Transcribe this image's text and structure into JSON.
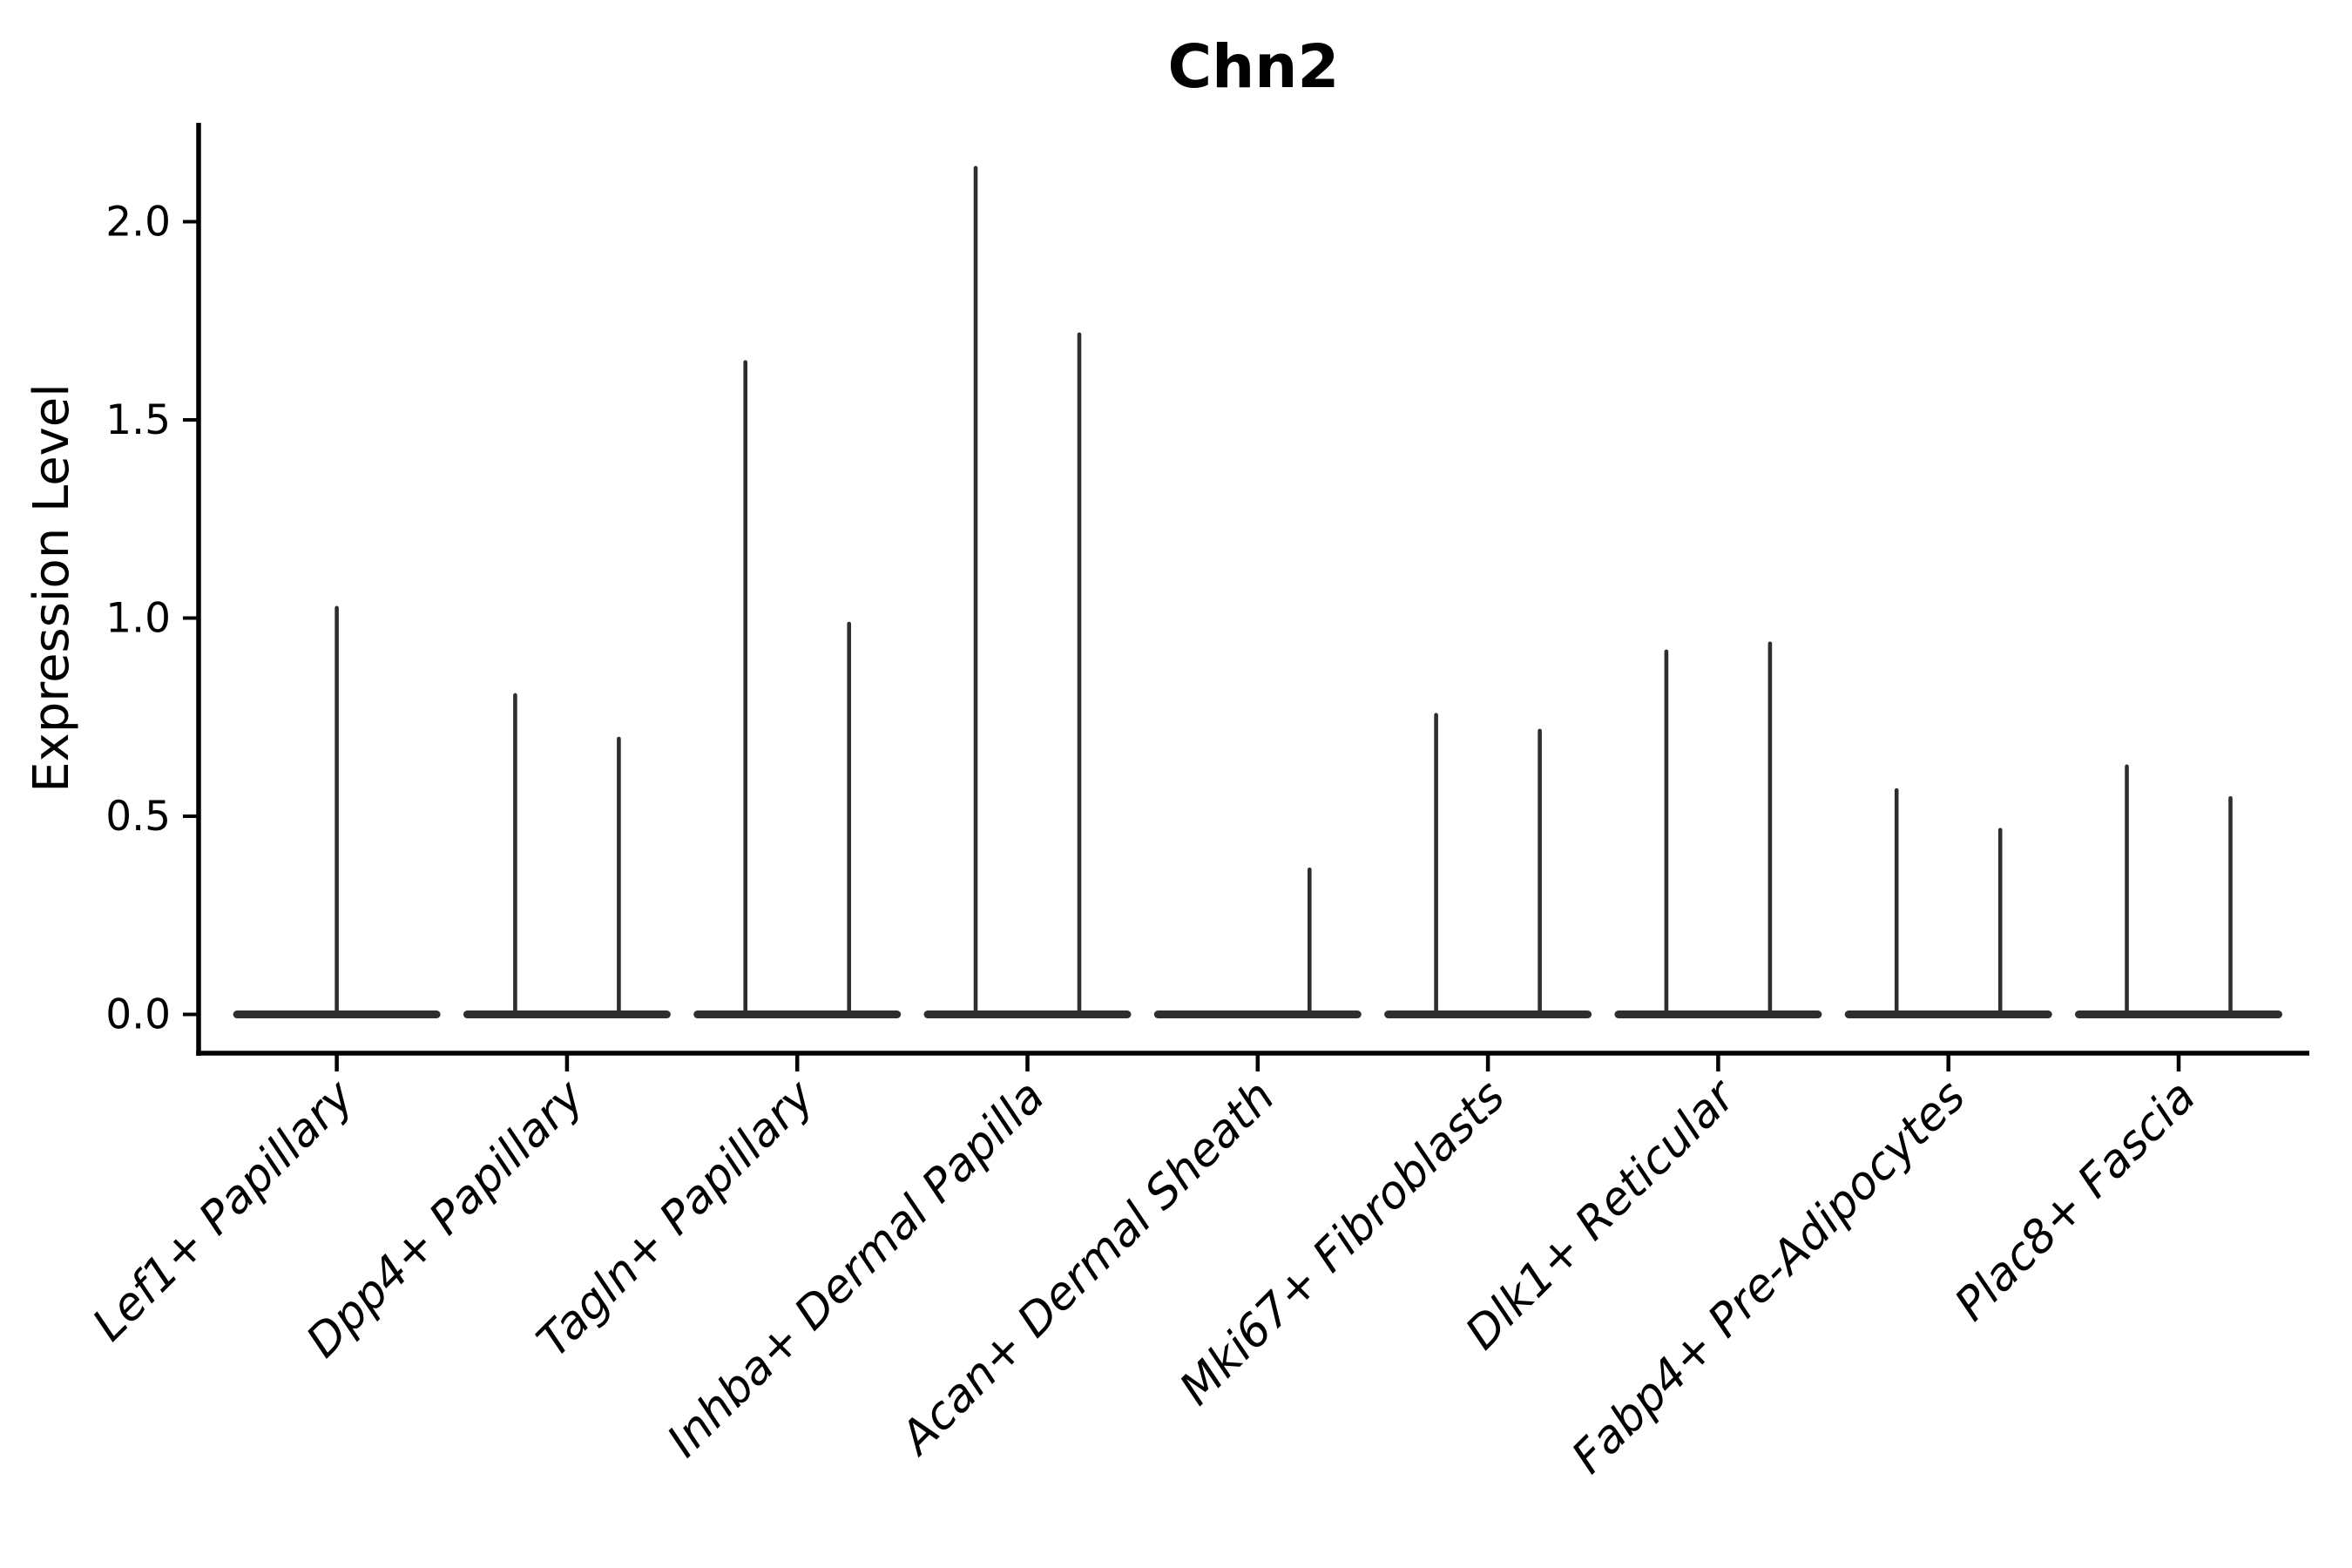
{
  "chart_data": {
    "type": "violin",
    "title": "Chn2",
    "xlabel": "",
    "ylabel": "Expression Level",
    "ylim": [
      -0.1,
      2.25
    ],
    "yticks": [
      "0.0",
      "0.5",
      "1.0",
      "1.5",
      "2.0"
    ],
    "ytick_values": [
      0.0,
      0.5,
      1.0,
      1.5,
      2.0
    ],
    "grid": "off",
    "legend": "none",
    "description": "Violin plot of Chn2 expression; most cells at 0 giving flat wide bases with thin density needles rising to the max expression value. Each category holds two half-width violins (two groups) except Lef1+ Papillary which shows a single full-width violin.",
    "categories": [
      "Lef1+ Papillary",
      "Dpp4+ Papillary",
      "Tagln+ Papillary",
      "Inhba+ Dermal Papilla",
      "Acan+ Dermal Sheath",
      "Mki67+ Fibroblasts",
      "Dlk1+ Reticular",
      "Fabp4+ Pre-Adipocytes",
      "Plac8+ Fascia"
    ],
    "violins": [
      {
        "category": "Lef1+ Papillary",
        "layout": "single-full-width",
        "needle_max": [
          1.03
        ]
      },
      {
        "category": "Dpp4+ Papillary",
        "layout": "pair",
        "needle_max": [
          0.81,
          0.7
        ]
      },
      {
        "category": "Tagln+ Papillary",
        "layout": "pair",
        "needle_max": [
          1.65,
          0.99
        ]
      },
      {
        "category": "Inhba+ Dermal Papilla",
        "layout": "pair",
        "needle_max": [
          2.14,
          1.72
        ]
      },
      {
        "category": "Acan+ Dermal Sheath",
        "layout": "pair",
        "needle_max": [
          0.0,
          0.37
        ]
      },
      {
        "category": "Mki67+ Fibroblasts",
        "layout": "pair",
        "needle_max": [
          0.76,
          0.72
        ]
      },
      {
        "category": "Dlk1+ Reticular",
        "layout": "pair",
        "needle_max": [
          0.92,
          0.94
        ]
      },
      {
        "category": "Fabp4+ Pre-Adipocytes",
        "layout": "pair",
        "needle_max": [
          0.57,
          0.47
        ]
      },
      {
        "category": "Plac8+ Fascia",
        "layout": "pair",
        "needle_max": [
          0.63,
          0.55
        ]
      }
    ]
  },
  "style": {
    "violin_ink": "#2e2e2e",
    "axis_ink": "#000000",
    "background": "#ffffff"
  }
}
